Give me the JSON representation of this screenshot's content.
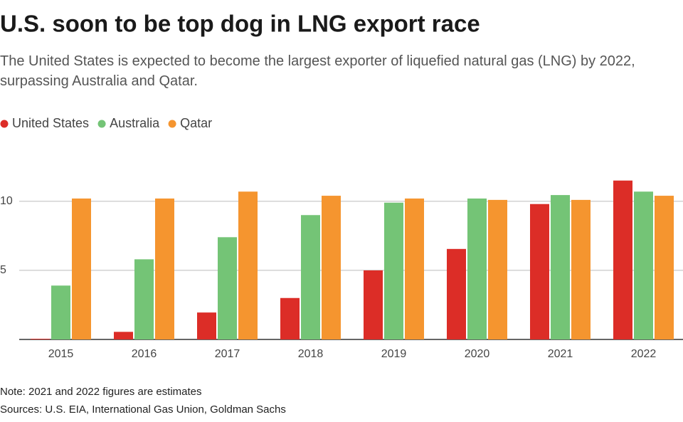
{
  "chart_data": {
    "type": "bar",
    "title": "U.S. soon to be top dog in LNG export race",
    "subtitle": "The United States is expected to become the largest exporter of liquefied natural gas (LNG) by 2022, surpassing Australia and Qatar.",
    "note": "Note: 2021 and 2022 figures are estimates",
    "source": "Sources: U.S. EIA, International Gas Union, Goldman Sachs",
    "categories": [
      "2015",
      "2016",
      "2017",
      "2018",
      "2019",
      "2020",
      "2021",
      "2022"
    ],
    "series": [
      {
        "name": "United States",
        "color": "#dc2d27",
        "values": [
          0.05,
          0.55,
          1.95,
          3.0,
          5.0,
          6.55,
          9.8,
          11.5
        ]
      },
      {
        "name": "Australia",
        "color": "#74c476",
        "values": [
          3.9,
          5.8,
          7.4,
          9.0,
          9.9,
          10.2,
          10.45,
          10.7
        ]
      },
      {
        "name": "Qatar",
        "color": "#f5952f",
        "values": [
          10.2,
          10.2,
          10.7,
          10.4,
          10.2,
          10.1,
          10.1,
          10.4
        ]
      }
    ],
    "ylim": [
      0,
      12
    ],
    "yticks": [
      5,
      10
    ],
    "grid": true,
    "legend": "top-left"
  }
}
